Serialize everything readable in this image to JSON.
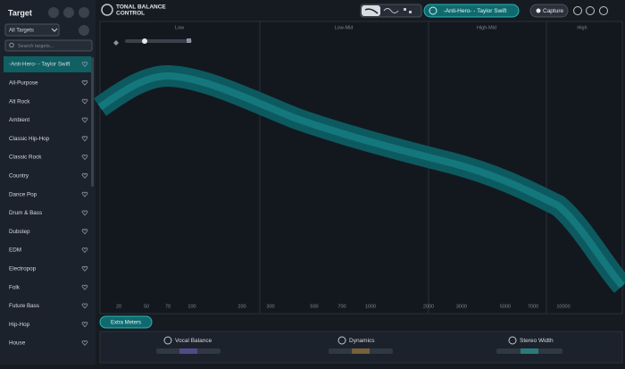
{
  "sidebar": {
    "title": "Target",
    "dropdown": "All Targets",
    "search_placeholder": "Search targets...",
    "items": [
      "-Anti-Hero- - Taylor Swift",
      "All-Purpose",
      "Alt Rock",
      "Ambient",
      "Classic Hip-Hop",
      "Classic Rock",
      "Country",
      "Dance Pop",
      "Drum & Bass",
      "Dubstep",
      "EDM",
      "Electropop",
      "Folk",
      "Future Bass",
      "Hip-Hop",
      "House"
    ]
  },
  "header": {
    "logo_line1": "TONAL BALANCE",
    "logo_line2": "CONTROL",
    "selected_target": "-Anti-Hero- - Taylor Swift",
    "capture": "Capture"
  },
  "chart": {
    "bands": [
      "Low",
      "Low-Mid",
      "High-Mid",
      "High"
    ],
    "freq_labels": [
      "20",
      "50",
      "70",
      "100",
      "200",
      "300",
      "500",
      "700",
      "1000",
      "2000",
      "3000",
      "5000",
      "7000",
      "10000"
    ]
  },
  "footer": {
    "extra_meters": "Extra Meters",
    "meters": [
      "Vocal Balance",
      "Dynamics",
      "Stereo Width"
    ]
  }
}
